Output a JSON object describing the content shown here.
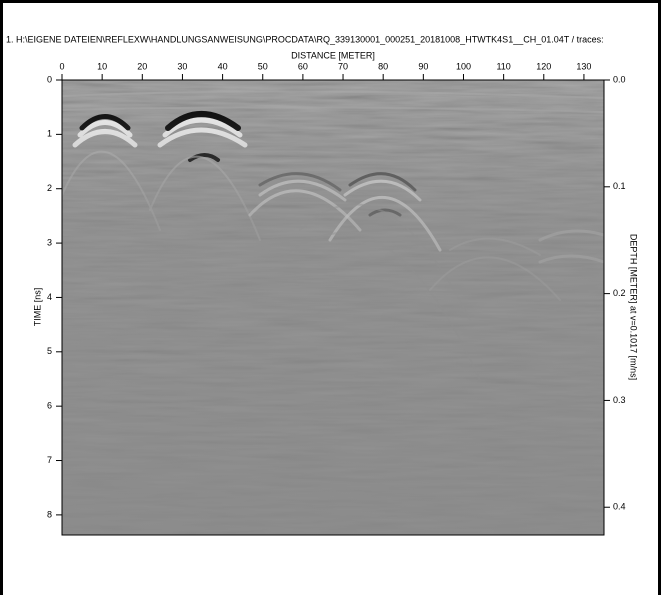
{
  "chart_data": {
    "type": "radargram",
    "title": "1. H:\\EIGENE DATEIEN\\REFLEXW\\HANDLUNGSANWEISUNG\\PROCDATA\\RQ_339130001_000251_20181008_HTWTK4S1__CH_01.04T / traces:",
    "x_label": "DISTANCE [METER]",
    "y_label": "TIME [ns]",
    "y2_label": "DEPTH [METER] at v=0.1017 [m/ns]",
    "xlim": [
      0,
      135
    ],
    "xticks": [
      0,
      10,
      20,
      30,
      40,
      50,
      60,
      70,
      80,
      90,
      100,
      110,
      120,
      130
    ],
    "ylim": [
      0,
      8.37
    ],
    "yticks": [
      0,
      1,
      2,
      3,
      4,
      5,
      6,
      7,
      8
    ],
    "y2lim": [
      0,
      0.426
    ],
    "y2ticks": [
      {
        "value": 0,
        "label": "0.0"
      },
      0.1,
      0.2,
      0.3,
      0.4
    ]
  }
}
